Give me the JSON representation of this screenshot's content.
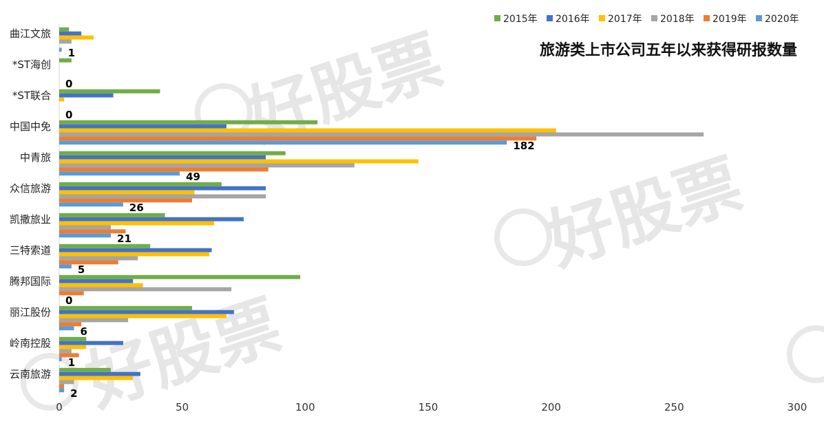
{
  "chart_data": {
    "type": "bar",
    "orientation": "horizontal",
    "title": "旅游类上市公司五年以来获得研报数量",
    "categories": [
      "曲江文旅",
      "*ST海创",
      "*ST联合",
      "中国中免",
      "中青旅",
      "众信旅游",
      "凯撒旅业",
      "三特索道",
      "腾邦国际",
      "丽江股份",
      "岭南控股",
      "云南旅游"
    ],
    "series": [
      {
        "name": "2015年",
        "color": "#70ad47",
        "values": [
          4,
          5,
          41,
          105,
          92,
          66,
          43,
          37,
          98,
          54,
          11,
          21
        ]
      },
      {
        "name": "2016年",
        "color": "#4472c4",
        "values": [
          9,
          0,
          22,
          68,
          84,
          84,
          75,
          62,
          30,
          71,
          26,
          33
        ]
      },
      {
        "name": "2017年",
        "color": "#ffc000",
        "values": [
          14,
          0,
          2,
          202,
          146,
          55,
          63,
          61,
          34,
          68,
          11,
          30
        ]
      },
      {
        "name": "2018年",
        "color": "#a5a5a5",
        "values": [
          5,
          0,
          0,
          262,
          120,
          84,
          21,
          32,
          70,
          28,
          5,
          6
        ]
      },
      {
        "name": "2019年",
        "color": "#ed7d31",
        "values": [
          0,
          0,
          0,
          194,
          85,
          54,
          27,
          24,
          10,
          9,
          8,
          2
        ]
      },
      {
        "name": "2020年",
        "color": "#5b9bd5",
        "values": [
          1,
          0,
          0,
          182,
          49,
          26,
          21,
          5,
          0,
          6,
          1,
          2
        ]
      }
    ],
    "data_labels_series": "2020年",
    "xlim": [
      0,
      300
    ],
    "xticks": [
      0,
      50,
      100,
      150,
      200,
      250,
      300
    ],
    "legend_position": "top-right",
    "grid": false
  },
  "watermark": {
    "text": "好股票"
  }
}
